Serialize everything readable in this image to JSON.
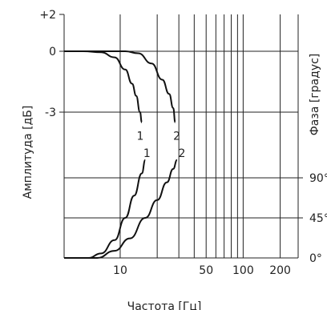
{
  "chart_data": {
    "type": "line",
    "title": "",
    "xlabel": "Частота [Гц]",
    "ylabel_left": "Амплитуда [дБ]",
    "ylabel_right": "Фаза [градус]",
    "x_scale": "log",
    "xlim": [
      3.5,
      280
    ],
    "x_ticks": [
      10,
      50,
      100,
      200
    ],
    "x_tick_labels": [
      "10",
      "50",
      "100",
      "200"
    ],
    "x_gridlines": [
      20,
      30,
      40,
      50,
      60,
      70,
      80,
      90,
      100,
      200
    ],
    "amp_ticks": [
      2,
      0,
      -3
    ],
    "amp_tick_labels": [
      "+2",
      "0",
      "-3"
    ],
    "phase_ticks": [
      90,
      45,
      0
    ],
    "phase_tick_labels": [
      "90°",
      "45°",
      "0°"
    ],
    "grid": true,
    "series": [
      {
        "name": "1",
        "axis": "amplitude",
        "points": [
          [
            3.5,
            0
          ],
          [
            5,
            0
          ],
          [
            7,
            -0.05
          ],
          [
            9,
            -0.3
          ],
          [
            11,
            -0.9
          ],
          [
            12.5,
            -1.6
          ],
          [
            13.5,
            -2.2
          ],
          [
            14.5,
            -3.0
          ],
          [
            15,
            -3.5
          ]
        ]
      },
      {
        "name": "2",
        "axis": "amplitude",
        "points": [
          [
            3.5,
            0
          ],
          [
            8,
            0
          ],
          [
            11,
            0
          ],
          [
            14,
            -0.1
          ],
          [
            18,
            -0.6
          ],
          [
            22,
            -1.4
          ],
          [
            25,
            -2.1
          ],
          [
            27,
            -2.8
          ],
          [
            28,
            -3.5
          ]
        ]
      },
      {
        "name": "1",
        "axis": "phase",
        "points": [
          [
            3.5,
            0
          ],
          [
            5.5,
            0
          ],
          [
            7,
            5
          ],
          [
            9,
            20
          ],
          [
            11,
            45
          ],
          [
            13,
            70
          ],
          [
            15,
            95
          ],
          [
            16,
            110
          ]
        ]
      },
      {
        "name": "2",
        "axis": "phase",
        "points": [
          [
            3.5,
            0
          ],
          [
            6.5,
            0
          ],
          [
            9,
            8
          ],
          [
            12,
            22
          ],
          [
            16,
            45
          ],
          [
            20,
            65
          ],
          [
            24,
            85
          ],
          [
            27,
            100
          ],
          [
            29,
            110
          ]
        ]
      }
    ],
    "curve_labels": [
      {
        "text": "1",
        "series": 0
      },
      {
        "text": "2",
        "series": 1
      },
      {
        "text": "1",
        "series": 2
      },
      {
        "text": "2",
        "series": 3
      }
    ]
  }
}
